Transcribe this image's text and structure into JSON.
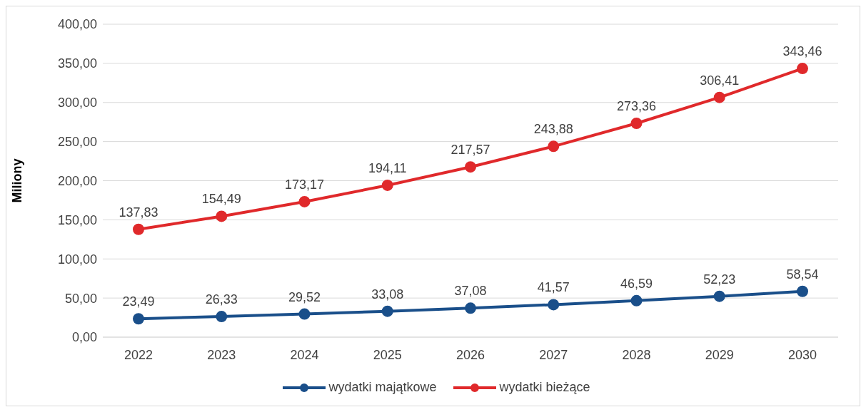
{
  "chart_data": {
    "type": "line",
    "ylabel": "Miliony",
    "categories": [
      "2022",
      "2023",
      "2024",
      "2025",
      "2026",
      "2027",
      "2028",
      "2029",
      "2030"
    ],
    "series": [
      {
        "name": "wydatki majątkowe",
        "color": "#1a4f8a",
        "values": [
          23.49,
          26.33,
          29.52,
          33.08,
          37.08,
          41.57,
          46.59,
          52.23,
          58.54
        ],
        "value_labels": [
          "23,49",
          "26,33",
          "29,52",
          "33,08",
          "37,08",
          "41,57",
          "46,59",
          "52,23",
          "58,54"
        ]
      },
      {
        "name": "wydatki bieżące",
        "color": "#e0292b",
        "values": [
          137.83,
          154.49,
          173.17,
          194.11,
          217.57,
          243.88,
          273.36,
          306.41,
          343.46
        ],
        "value_labels": [
          "137,83",
          "154,49",
          "173,17",
          "194,11",
          "217,57",
          "243,88",
          "273,36",
          "306,41",
          "343,46"
        ]
      }
    ],
    "ylim": [
      0,
      400
    ],
    "yticks": [
      {
        "value": 0,
        "label": "0,00"
      },
      {
        "value": 50,
        "label": "50,00"
      },
      {
        "value": 100,
        "label": "100,00"
      },
      {
        "value": 150,
        "label": "150,00"
      },
      {
        "value": 200,
        "label": "200,00"
      },
      {
        "value": 250,
        "label": "250,00"
      },
      {
        "value": 300,
        "label": "300,00"
      },
      {
        "value": 350,
        "label": "350,00"
      },
      {
        "value": 400,
        "label": "400,00"
      }
    ],
    "grid": "y",
    "legend": "bottom",
    "marker": "circle",
    "line_style": "solid"
  }
}
